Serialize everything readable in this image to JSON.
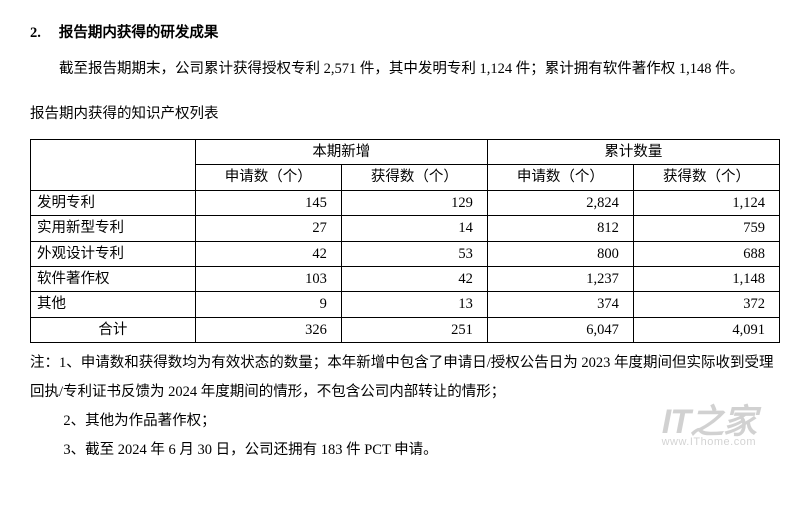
{
  "heading": {
    "number": "2.",
    "title": "报告期内获得的研发成果"
  },
  "intro": "截至报告期期末，公司累计获得授权专利 2,571 件，其中发明专利 1,124 件；累计拥有软件著作权 1,148 件。",
  "table_caption": "报告期内获得的知识产权列表",
  "table": {
    "group_headers": [
      "本期新增",
      "累计数量"
    ],
    "sub_headers": [
      "申请数（个）",
      "获得数（个）",
      "申请数（个）",
      "获得数（个）"
    ],
    "rows": [
      {
        "label": "发明专利",
        "cells": [
          "145",
          "129",
          "2,824",
          "1,124"
        ]
      },
      {
        "label": "实用新型专利",
        "cells": [
          "27",
          "14",
          "812",
          "759"
        ]
      },
      {
        "label": "外观设计专利",
        "cells": [
          "42",
          "53",
          "800",
          "688"
        ]
      },
      {
        "label": "软件著作权",
        "cells": [
          "103",
          "42",
          "1,237",
          "1,148"
        ]
      },
      {
        "label": "其他",
        "cells": [
          "9",
          "13",
          "374",
          "372"
        ]
      }
    ],
    "total_label": "合计",
    "total_cells": [
      "326",
      "251",
      "6,047",
      "4,091"
    ],
    "col_widths": [
      "22%",
      "19.5%",
      "19.5%",
      "19.5%",
      "19.5%"
    ]
  },
  "notes": {
    "n1": "注：1、申请数和获得数均为有效状态的数量；本年新增中包含了申请日/授权公告日为 2023 年度期间但实际收到受理回执/专利证书反馈为 2024 年度期间的情形，不包含公司内部转让的情形；",
    "n2": "2、其他为作品著作权；",
    "n3": "3、截至 2024 年 6 月 30 日，公司还拥有 183 件 PCT 申请。"
  },
  "watermark": {
    "main": "IT之家",
    "sub": "www.IThome.com"
  }
}
